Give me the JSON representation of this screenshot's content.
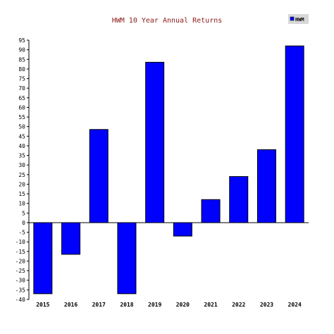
{
  "chart_data": {
    "type": "bar",
    "title": "HWM 10 Year Annual Returns",
    "categories": [
      "2015",
      "2016",
      "2017",
      "2018",
      "2019",
      "2020",
      "2021",
      "2022",
      "2023",
      "2024"
    ],
    "series": [
      {
        "name": "HWM",
        "values": [
          -37,
          -16.5,
          48.5,
          -37,
          83.5,
          -7,
          12,
          24,
          38,
          92
        ],
        "color": "#0000ff"
      }
    ],
    "ylim": [
      -40,
      95
    ],
    "yticks": [
      95,
      90,
      85,
      80,
      75,
      70,
      65,
      60,
      55,
      50,
      45,
      40,
      35,
      30,
      25,
      20,
      15,
      10,
      5,
      0,
      -5,
      -10,
      -15,
      -20,
      -25,
      -30,
      -35,
      -40
    ],
    "legend_position": "top-right",
    "grid": false
  }
}
